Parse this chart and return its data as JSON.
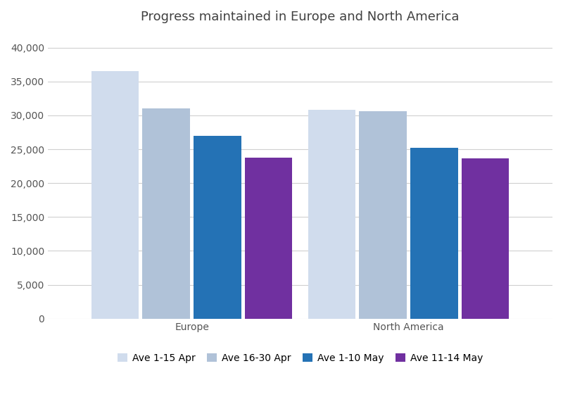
{
  "title": "Progress maintained in Europe and North America",
  "categories": [
    "Europe",
    "North America"
  ],
  "series": [
    {
      "label": "Ave 1-15 Apr",
      "color": "#d0dced",
      "values": [
        36500,
        30800
      ]
    },
    {
      "label": "Ave 16-30 Apr",
      "color": "#b0c2d8",
      "values": [
        31000,
        30600
      ]
    },
    {
      "label": "Ave 1-10 May",
      "color": "#2472b5",
      "values": [
        27000,
        25200
      ]
    },
    {
      "label": "Ave 11-14 May",
      "color": "#7030a0",
      "values": [
        23800,
        23700
      ]
    }
  ],
  "ylim": [
    0,
    42000
  ],
  "yticks": [
    0,
    5000,
    10000,
    15000,
    20000,
    25000,
    30000,
    35000,
    40000
  ],
  "background_color": "#ffffff",
  "grid_color": "#d0d0d0",
  "title_fontsize": 13,
  "tick_fontsize": 10,
  "legend_fontsize": 10,
  "bar_width": 0.55,
  "group_positions": [
    1.4,
    3.9
  ]
}
